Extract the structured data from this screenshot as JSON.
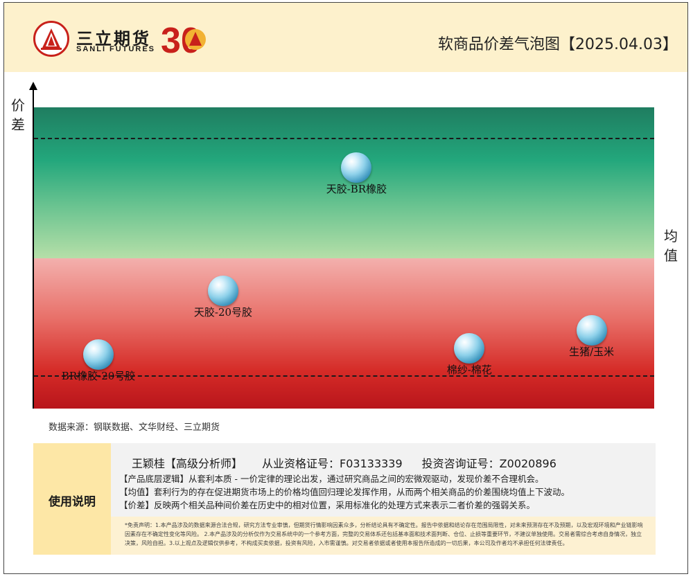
{
  "header": {
    "logo_cn": "三立期货",
    "logo_en": "SANLI FUTURES",
    "logo_anniversary": "30",
    "title": "软商品价差气泡图【2025.04.03】"
  },
  "labels": {
    "y_axis": "价差",
    "right": "均值"
  },
  "chart_data": {
    "type": "scatter",
    "title": "软商品价差气泡图【2025.04.03】",
    "ylabel": "价差",
    "y_scale": "normalized",
    "ylim": [
      0,
      1
    ],
    "mean_level": 0.5,
    "upper_threshold": 0.9,
    "lower_threshold": 0.11,
    "background": {
      "above_mean_color": "#23a77c",
      "below_mean_color": "#d52b27"
    },
    "points": [
      {
        "name": "天胶-BR橡胶",
        "x": 0.52,
        "y": 0.8
      },
      {
        "name": "天胶-20号胶",
        "x": 0.305,
        "y": 0.39
      },
      {
        "name": "BR橡胶-20号胶",
        "x": 0.104,
        "y": 0.18
      },
      {
        "name": "棉纱-棉花",
        "x": 0.702,
        "y": 0.2
      },
      {
        "name": "生猪/玉米",
        "x": 0.899,
        "y": 0.26
      }
    ]
  },
  "source": "数据来源：钢联数据、文华财经、三立期货",
  "notes": {
    "section_label": "使用说明",
    "analyst": "王颖桂【高级分析师】",
    "license": "从业资格证号：F03133339",
    "consult": "投资咨询证号：Z0020896",
    "logic_lines": [
      "【产品底层逻辑】从套利本质 - 一价定律的理论出发，通过研究商品之间的宏微观驱动，发现价差不合理机会。",
      "【均值】套利行为的存在促进期货市场上的价格均值回归理论发挥作用，从而两个相关商品的价差围绕均值上下波动。",
      "【价差】反映两个相关品种间价差在历史中的相对位置，采用标准化的处理方式来表示二者价差的强弱关系。"
    ],
    "disclaimer": "*免责声明：1.本产品涉及的数据来源合法合规，研究方法专业审慎，但期货行情影响因素众多，分析结论具有不确定性。报告中依据和结论存在范围局限性，对未来预测存在不及预期，以及宏观环境和产业链影响因素存在不确定性变化等风险。 2.本产品涉及的分析仅作为交易系统中的一个参考方面，完整的交易体系还包括基本面和技术面判断、仓位、止损等重要环节，不建议单独使用。交易者需综合考虑自身情况，独立决策，风险自担。3.以上观点及逻辑仅供参考，不构成买卖依据，投资有风险，入市需谨慎。对交易者依据或者使用本报告所造成的一切后果，本公司及作者均不承担任何法律责任。"
  }
}
